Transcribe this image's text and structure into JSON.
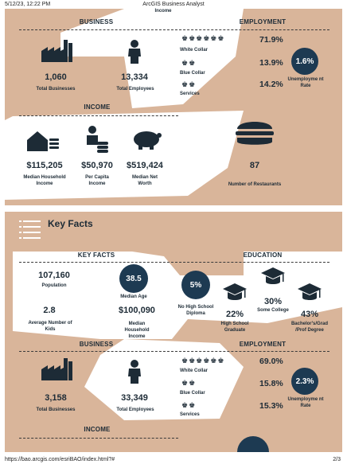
{
  "browser": {
    "datetime": "5/12/23, 12:22 PM",
    "app_title": "ArcGIS Business Analyst",
    "url": "https://bao.arcgis.com/esriBAO/index.html?#",
    "page_num": "2/3"
  },
  "top_fragment": {
    "income_label": "Income"
  },
  "block1": {
    "business_title": "BUSINESS",
    "employment_title": "EMPLOYMENT",
    "total_businesses": "1,060",
    "total_businesses_label": "Total Businesses",
    "total_employees": "13,334",
    "total_employees_label": "Total Employees",
    "white_collar_label": "White Collar",
    "white_collar_pct": "71.9%",
    "blue_collar_label": "Blue Collar",
    "blue_collar_pct": "13.9%",
    "services_label": "Services",
    "services_pct": "14.2%",
    "unemployment_rate": "1.6%",
    "unemployment_label": "Unemployme nt Rate",
    "income_title": "INCOME",
    "median_household_income": "$115,205",
    "median_household_income_label": "Median Household Income",
    "per_capita_income": "$50,970",
    "per_capita_income_label": "Per Capita Income",
    "median_net_worth": "$519,424",
    "median_net_worth_label": "Median Net Worth",
    "restaurants": "87",
    "restaurants_label": "Number of Restaurants"
  },
  "key_facts_header": {
    "title": "Key Facts"
  },
  "block2": {
    "key_facts_title": "KEY FACTS",
    "education_title": "EDUCATION",
    "population": "107,160",
    "population_label": "Population",
    "median_age": "38.5",
    "median_age_label": "Median Age",
    "avg_kids": "2.8",
    "avg_kids_label": "Average Number of Kids",
    "median_household_income": "$100,090",
    "median_household_income_label": "Median Household Income",
    "no_high_school_pct": "5%",
    "no_high_school_label": "No High School Diploma",
    "high_school_pct": "22%",
    "high_school_label": "High School Graduate",
    "some_college_pct": "30%",
    "some_college_label": "Some College",
    "bachelors_pct": "43%",
    "bachelors_label": "Bachelor's/Grad /Prof Degree",
    "business_title": "BUSINESS",
    "employment_title": "EMPLOYMENT",
    "total_businesses": "3,158",
    "total_businesses_label": "Total Businesses",
    "total_employees": "33,349",
    "total_employees_label": "Total Employees",
    "white_collar_label": "White Collar",
    "white_collar_pct": "69.0%",
    "blue_collar_label": "Blue Collar",
    "blue_collar_pct": "15.8%",
    "services_label": "Services",
    "services_pct": "15.3%",
    "unemployment_rate": "2.3%",
    "unemployment_label": "Unemployme nt Rate",
    "income_title": "INCOME"
  },
  "colors": {
    "panel": "#d9b59a",
    "navy": "#1d3a52",
    "text": "#1d2b36"
  },
  "icons": [
    "factory-icon",
    "person-icon",
    "people-icon",
    "house-coins-icon",
    "person-coins-icon",
    "piggy-bank-icon",
    "burger-icon",
    "graduation-cap-icon",
    "list-icon"
  ]
}
